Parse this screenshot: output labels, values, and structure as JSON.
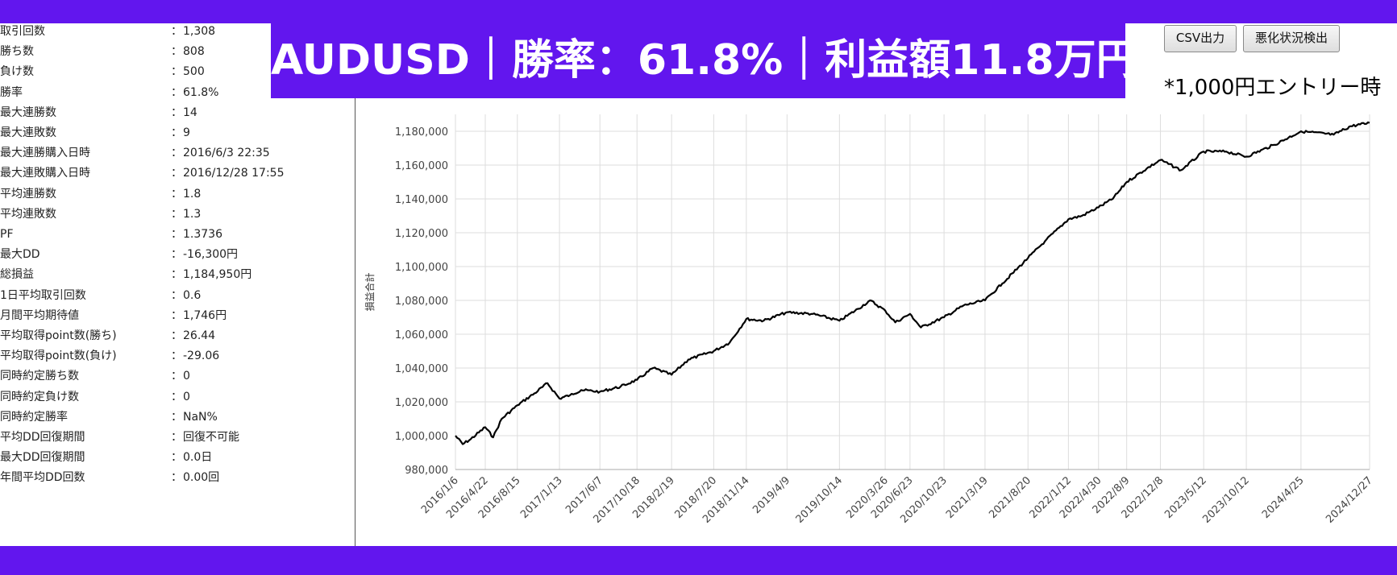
{
  "banner": {
    "title": "AUDUSD｜勝率：61.8%｜利益額11.8万円*"
  },
  "toolbar": {
    "csv_label": "CSV出力",
    "detect_label": "悪化状況検出"
  },
  "note": "*1,000円エントリー時",
  "stats": [
    {
      "label": "取引回数",
      "value": "1,308"
    },
    {
      "label": "勝ち数",
      "value": "808"
    },
    {
      "label": "負け数",
      "value": "500"
    },
    {
      "label": "勝率",
      "value": "61.8%"
    },
    {
      "label": "最大連勝数",
      "value": "14"
    },
    {
      "label": "最大連敗数",
      "value": "9"
    },
    {
      "label": "最大連勝購入日時",
      "value": "2016/6/3 22:35"
    },
    {
      "label": "最大連敗購入日時",
      "value": "2016/12/28 17:55"
    },
    {
      "label": "平均連勝数",
      "value": "1.8"
    },
    {
      "label": "平均連敗数",
      "value": "1.3"
    },
    {
      "label": "PF",
      "value": "1.3736"
    },
    {
      "label": "最大DD",
      "value": "-16,300円"
    },
    {
      "label": "総損益",
      "value": "1,184,950円"
    },
    {
      "label": "1日平均取引回数",
      "value": "0.6"
    },
    {
      "label": "月間平均期待値",
      "value": "1,746円"
    },
    {
      "label": "平均取得point数(勝ち)",
      "value": "26.44"
    },
    {
      "label": "平均取得point数(負け)",
      "value": "-29.06"
    },
    {
      "label": "同時約定勝ち数",
      "value": "0"
    },
    {
      "label": "同時約定負け数",
      "value": "0"
    },
    {
      "label": "同時約定勝率",
      "value": "NaN%"
    },
    {
      "label": "平均DD回復期間",
      "value": "回復不可能"
    },
    {
      "label": "最大DD回復期間",
      "value": "0.0日"
    },
    {
      "label": "年間平均DD回数",
      "value": "0.00回"
    }
  ],
  "stat_separator": "：",
  "colors": {
    "band": "#6216ee",
    "line": "#000000",
    "grid": "#dddddd"
  },
  "chart_data": {
    "type": "line",
    "title": "",
    "xlabel": "",
    "ylabel": "損益合計",
    "ylim": [
      980000,
      1190000
    ],
    "yticks": [
      980000,
      1000000,
      1020000,
      1040000,
      1060000,
      1080000,
      1100000,
      1120000,
      1140000,
      1160000,
      1180000
    ],
    "ytick_labels": [
      "980,000",
      "1,000,000",
      "1,020,000",
      "1,040,000",
      "1,060,000",
      "1,080,000",
      "1,100,000",
      "1,120,000",
      "1,140,000",
      "1,160,000",
      "1,180,000"
    ],
    "xticks": [
      "2016/1/6",
      "2016/4/22",
      "2016/8/15",
      "2017/1/13",
      "2017/6/7",
      "2017/10/18",
      "2018/2/19",
      "2018/7/20",
      "2018/11/14",
      "2019/4/9",
      "2019/10/14",
      "2020/3/26",
      "2020/6/23",
      "2020/10/23",
      "2021/3/19",
      "2021/8/20",
      "2022/1/12",
      "2022/4/30",
      "2022/8/9",
      "2022/12/8",
      "2023/5/12",
      "2023/10/12",
      "2024/4/25",
      "2024/12/27"
    ],
    "grid": true,
    "legend": "none",
    "series": [
      {
        "x": [
          "2016/1/6",
          "2016/2/1",
          "2016/3/1",
          "2016/4/22",
          "2016/5/20",
          "2016/6/20",
          "2016/8/15",
          "2016/10/15",
          "2016/12/1",
          "2017/1/13",
          "2017/2/20",
          "2017/4/1",
          "2017/6/7",
          "2017/8/20",
          "2017/10/18",
          "2017/12/15",
          "2018/2/19",
          "2018/4/20",
          "2018/7/20",
          "2018/9/15",
          "2018/11/14",
          "2019/1/15",
          "2019/4/9",
          "2019/7/10",
          "2019/10/14",
          "2019/12/20",
          "2020/2/1",
          "2020/3/26",
          "2020/5/1",
          "2020/6/23",
          "2020/8/1",
          "2020/10/23",
          "2021/1/1",
          "2021/3/19",
          "2021/5/20",
          "2021/8/20",
          "2021/10/20",
          "2022/1/12",
          "2022/3/1",
          "2022/4/30",
          "2022/6/20",
          "2022/8/9",
          "2022/10/20",
          "2022/12/8",
          "2023/2/20",
          "2023/5/12",
          "2023/8/1",
          "2023/10/12",
          "2024/1/20",
          "2024/4/25",
          "2024/8/20",
          "2024/10/20",
          "2024/12/27"
        ],
        "y": [
          1000000,
          995000,
          998000,
          1005000,
          999000,
          1010000,
          1018000,
          1025000,
          1031000,
          1022000,
          1024000,
          1027000,
          1026000,
          1029000,
          1033000,
          1040000,
          1036000,
          1045000,
          1050000,
          1055000,
          1069000,
          1068000,
          1073000,
          1072000,
          1068000,
          1075000,
          1080000,
          1074000,
          1067000,
          1072000,
          1064000,
          1070000,
          1077000,
          1080000,
          1090000,
          1105000,
          1115000,
          1128000,
          1130000,
          1135000,
          1140000,
          1150000,
          1158000,
          1163000,
          1157000,
          1168000,
          1168000,
          1165000,
          1172000,
          1180000,
          1178000,
          1183000,
          1185000
        ]
      }
    ]
  }
}
